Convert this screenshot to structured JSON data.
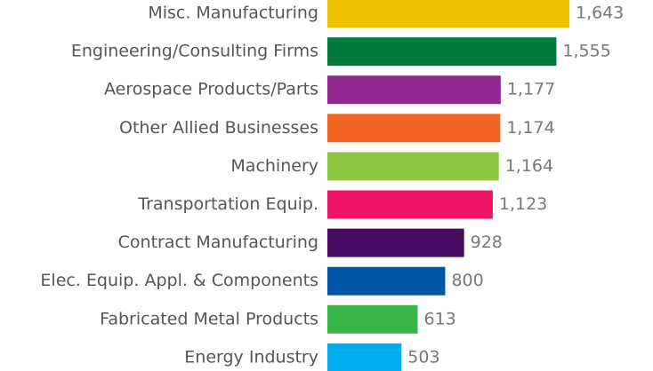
{
  "chart_data": {
    "type": "barh",
    "categories": [
      "Misc. Manufacturing",
      "Engineering/Consulting Firms",
      "Aerospace Products/Parts",
      "Other Allied Businesses",
      "Machinery",
      "Transportation Equip.",
      "Contract Manufacturing",
      "Elec. Equip. Appl. & Components",
      "Fabricated Metal Products",
      "Energy Industry"
    ],
    "values": [
      1643,
      1555,
      1177,
      1174,
      1164,
      1123,
      928,
      800,
      613,
      503
    ],
    "value_labels": [
      "1,643",
      "1,555",
      "1,177",
      "1,174",
      "1,164",
      "1,123",
      "928",
      "800",
      "613",
      "503"
    ],
    "colors": [
      "#f0c300",
      "#007a3d",
      "#92278f",
      "#f26522",
      "#8dc63f",
      "#ed1566",
      "#470a60",
      "#0054a6",
      "#39b54a",
      "#00aeef"
    ]
  }
}
